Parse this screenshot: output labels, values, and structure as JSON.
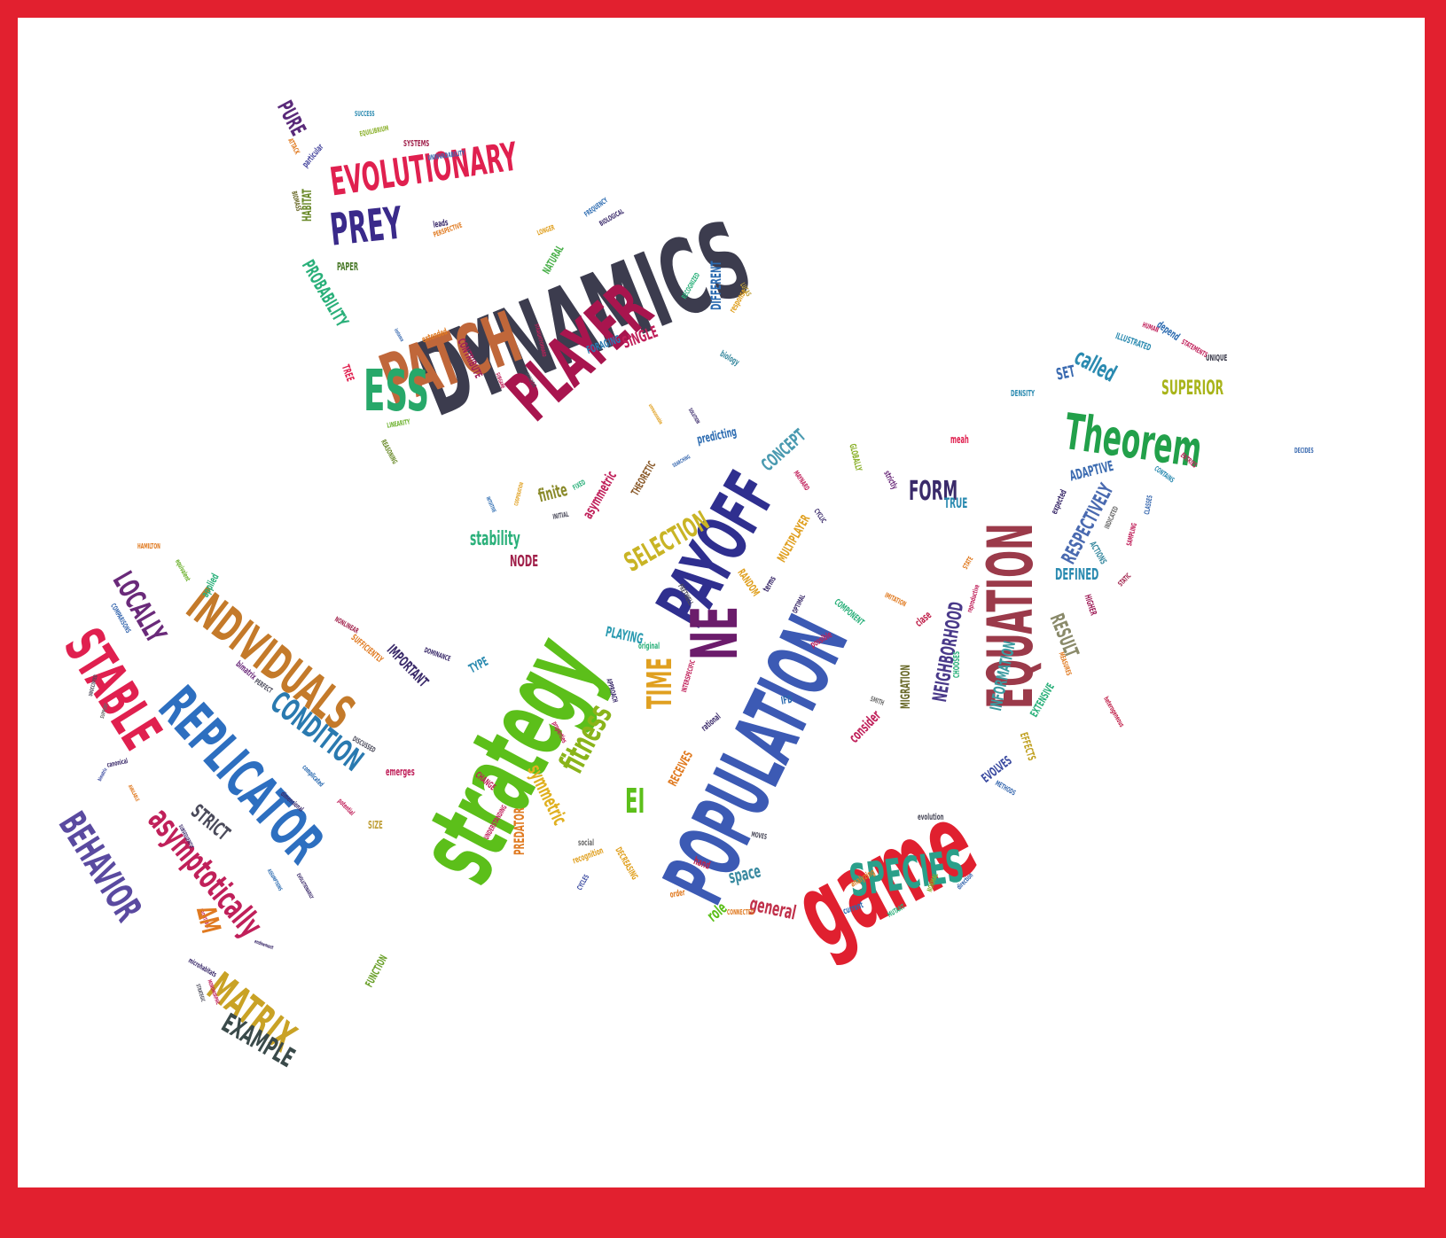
{
  "frame": {
    "border_color": "#e2202f",
    "paper_color": "#ffffff"
  },
  "words": [
    {
      "t": "DYNAMICS",
      "c": "#3c3c4e"
    },
    {
      "t": "strategy",
      "c": "#5cbf1a"
    },
    {
      "t": "game",
      "c": "#e0202f"
    },
    {
      "t": "POPULATION",
      "c": "#3c5ab4"
    },
    {
      "t": "PAYOFF",
      "c": "#2f2f8f"
    },
    {
      "t": "EQUATION",
      "c": "#9b3a4a"
    },
    {
      "t": "PATCH",
      "c": "#c0673a"
    },
    {
      "t": "PLAYER",
      "c": "#a8154e"
    },
    {
      "t": "NE",
      "c": "#6b1c6b"
    },
    {
      "t": "REPLICATOR",
      "c": "#2d6fc0"
    },
    {
      "t": "STABLE",
      "c": "#e0204f"
    },
    {
      "t": "INDIVIDUALS",
      "c": "#c47a2a"
    },
    {
      "t": "Theorem",
      "c": "#22a04a"
    },
    {
      "t": "EVOLUTIONARY",
      "c": "#e0204f"
    },
    {
      "t": "ESS",
      "c": "#27a86a"
    },
    {
      "t": "PREY",
      "c": "#3a2a8a"
    },
    {
      "t": "SPECIES",
      "c": "#2a9f8a"
    },
    {
      "t": "BEHAVIOR",
      "c": "#5a4aa0"
    },
    {
      "t": "asymptotically",
      "c": "#c0205a"
    },
    {
      "t": "MATRIX",
      "c": "#c9a225"
    },
    {
      "t": "EXAMPLE",
      "c": "#3a4a4a"
    },
    {
      "t": "LOCALLY",
      "c": "#6a2a7a"
    },
    {
      "t": "CONDITION",
      "c": "#2a7ab0"
    },
    {
      "t": "fitness",
      "c": "#8ab41a"
    },
    {
      "t": "TIME",
      "c": "#e0a020"
    },
    {
      "t": "SELECTION",
      "c": "#c9b425"
    },
    {
      "t": "stability",
      "c": "#2ab07a"
    },
    {
      "t": "FORM",
      "c": "#3a2a6a"
    },
    {
      "t": "NEIGHBORHOOD",
      "c": "#4a3a8a"
    },
    {
      "t": "RESPECTIVELY",
      "c": "#4a6ab0"
    },
    {
      "t": "SUPERIOR",
      "c": "#a8b41a"
    },
    {
      "t": "called",
      "c": "#2a8ab0"
    },
    {
      "t": "RESULT",
      "c": "#8a8a6a"
    },
    {
      "t": "INFORMATION",
      "c": "#3a9aa0"
    },
    {
      "t": "EI",
      "c": "#5cbf1a"
    },
    {
      "t": "general",
      "c": "#c0304a"
    },
    {
      "t": "STRICT",
      "c": "#4a4a5a"
    },
    {
      "t": "PROBABILITY",
      "c": "#2ab07a"
    },
    {
      "t": "PURE",
      "c": "#5a2a7a"
    },
    {
      "t": "HABITAT",
      "c": "#6a8a2a"
    },
    {
      "t": "DIFFERENT",
      "c": "#2a6ab0"
    },
    {
      "t": "SINGLE",
      "c": "#c0205a"
    },
    {
      "t": "CONCEPT",
      "c": "#4a9ab0"
    },
    {
      "t": "symmetric",
      "c": "#e0b020"
    },
    {
      "t": "PREDATOR",
      "c": "#e07a20"
    },
    {
      "t": "IMPORTANT",
      "c": "#3a2a6a"
    },
    {
      "t": "MIGRATION",
      "c": "#6a6a2a"
    },
    {
      "t": "ADAPTIVE",
      "c": "#3a6ab0"
    },
    {
      "t": "DEFINED",
      "c": "#2a8ab0"
    },
    {
      "t": "consider",
      "c": "#c0205a"
    },
    {
      "t": "space",
      "c": "#3a8aa0"
    },
    {
      "t": "role",
      "c": "#5cbf1a"
    },
    {
      "t": "PLAYING",
      "c": "#2a9ab0"
    },
    {
      "t": "NODE",
      "c": "#a0204a"
    },
    {
      "t": "finite",
      "c": "#8a8a2a"
    },
    {
      "t": "asymmetric",
      "c": "#c0205a"
    },
    {
      "t": "SET",
      "c": "#3a6ab0"
    },
    {
      "t": "TRUE",
      "c": "#2a8ab0"
    },
    {
      "t": "EVOLVES",
      "c": "#3a4aa0"
    },
    {
      "t": "FUNCTION",
      "c": "#6aa02a"
    },
    {
      "t": "SIZE",
      "c": "#c0a03a"
    },
    {
      "t": "TYPE",
      "c": "#2a8ab0"
    },
    {
      "t": "predicting",
      "c": "#2a6ab0"
    },
    {
      "t": "MULTIPLAYER",
      "c": "#e0a020"
    },
    {
      "t": "RANDOM",
      "c": "#e0a020"
    },
    {
      "t": "EFFECTS",
      "c": "#c0a020"
    },
    {
      "t": "EXTENSIVE",
      "c": "#2ab07a"
    },
    {
      "t": "FORAGING",
      "c": "#2a7ab0"
    },
    {
      "t": "CONTRIBUTE",
      "c": "#a0205a"
    },
    {
      "t": "NATURAL",
      "c": "#4ab04a"
    },
    {
      "t": "TREE",
      "c": "#e0204f"
    },
    {
      "t": "PAPER",
      "c": "#4a7a2a"
    },
    {
      "t": "emerges",
      "c": "#c0205a"
    },
    {
      "t": "CHOOSES",
      "c": "#2ab07a"
    },
    {
      "t": "DECREASING",
      "c": "#e0a020"
    },
    {
      "t": "THEORETIC",
      "c": "#8a5a2a"
    },
    {
      "t": "GLOBALLY",
      "c": "#8ab02a"
    },
    {
      "t": "COMPONENT",
      "c": "#2ab07a"
    },
    {
      "t": "ACTIONS",
      "c": "#3a8aa0"
    },
    {
      "t": "HIGHER",
      "c": "#a0205a"
    },
    {
      "t": "DENSITY",
      "c": "#2a8ab0"
    },
    {
      "t": "UNIQUE",
      "c": "#3a3a4a"
    },
    {
      "t": "depend",
      "c": "#2a6ab0"
    },
    {
      "t": "ILLUSTRATED",
      "c": "#2a8ab0"
    },
    {
      "t": "REASONING",
      "c": "#6a8a2a"
    },
    {
      "t": "LONGER",
      "c": "#e0a020"
    },
    {
      "t": "BIOLOGICAL",
      "c": "#3a2a6a"
    },
    {
      "t": "PERSPECTIVE",
      "c": "#e07a20"
    },
    {
      "t": "leads",
      "c": "#3a2a6a"
    },
    {
      "t": "SYSTEMS",
      "c": "#a0204a"
    },
    {
      "t": "SUCCESS",
      "c": "#2a8ab0"
    },
    {
      "t": "EQUILIBRIUM",
      "c": "#8ab02a"
    },
    {
      "t": "UNINVADABILITY",
      "c": "#3a6ab0"
    },
    {
      "t": "ATTACK",
      "c": "#e07a20"
    },
    {
      "t": "particular",
      "c": "#4a4aa0"
    },
    {
      "t": "BIOMASS",
      "c": "#6a6a2a"
    },
    {
      "t": "FREQUENCY",
      "c": "#2a6ab0"
    },
    {
      "t": "extended",
      "c": "#e07a20"
    },
    {
      "t": "biology",
      "c": "#3a8aa0"
    },
    {
      "t": "response",
      "c": "#e0a020"
    },
    {
      "t": "RECOGNIZED",
      "c": "#2ab07a"
    },
    {
      "t": "LUCAS",
      "c": "#c0a03a"
    },
    {
      "t": "HAMILTON",
      "c": "#e07a20"
    },
    {
      "t": "equivalent",
      "c": "#6ab02a"
    },
    {
      "t": "applied",
      "c": "#2ab07a"
    },
    {
      "t": "COMPARISONS",
      "c": "#3a6ab0"
    },
    {
      "t": "bimatrix",
      "c": "#6a2a7a"
    },
    {
      "t": "PERFECT",
      "c": "#4a4a5a"
    },
    {
      "t": "NONLINEAR",
      "c": "#a0204a"
    },
    {
      "t": "SUFFICIENTLY",
      "c": "#e07a20"
    },
    {
      "t": "DOMINANCE",
      "c": "#3a2a6a"
    },
    {
      "t": "DISCUSSED",
      "c": "#4a4a5a"
    },
    {
      "t": "complicated",
      "c": "#2a6ab0"
    },
    {
      "t": "potential",
      "c": "#c0205a"
    },
    {
      "t": "dimensional",
      "c": "#3a2a6a"
    },
    {
      "t": "CHANGE",
      "c": "#c0205a"
    },
    {
      "t": "UNDERSTANDING",
      "c": "#c0205a"
    },
    {
      "t": "social",
      "c": "#6a6a6a"
    },
    {
      "t": "recognition",
      "c": "#e0a020"
    },
    {
      "t": "CYCLES",
      "c": "#3a4aa0"
    },
    {
      "t": "hand",
      "c": "#c0204a"
    },
    {
      "t": "order",
      "c": "#e07a20"
    },
    {
      "t": "CONNECTED",
      "c": "#e07a20"
    },
    {
      "t": "MOVES",
      "c": "#4a4a5a"
    },
    {
      "t": "current",
      "c": "#2a6ab0"
    },
    {
      "t": "analyzing",
      "c": "#e07a20"
    },
    {
      "t": "MUTANT",
      "c": "#2ab07a"
    },
    {
      "t": "NORMAL",
      "c": "#8ab02a"
    },
    {
      "t": "direction",
      "c": "#3a6ab0"
    },
    {
      "t": "evolution",
      "c": "#4a4a5a"
    },
    {
      "t": "METHODS",
      "c": "#3a6ab0"
    },
    {
      "t": "heterogeneous",
      "c": "#c0204a"
    },
    {
      "t": "MEASURES",
      "c": "#e07a20"
    },
    {
      "t": "STATIC",
      "c": "#a0204a"
    },
    {
      "t": "SAMPLING",
      "c": "#c0205a"
    },
    {
      "t": "CLASSES",
      "c": "#3a6ab0"
    },
    {
      "t": "INDICATED",
      "c": "#6a6a6a"
    },
    {
      "t": "CONTAINS",
      "c": "#2a8ab0"
    },
    {
      "t": "ENTRIES",
      "c": "#c0205a"
    },
    {
      "t": "DECIDES",
      "c": "#3a6ab0"
    },
    {
      "t": "expected",
      "c": "#3a2a6a"
    },
    {
      "t": "strictly",
      "c": "#6a2a7a"
    },
    {
      "t": "meah",
      "c": "#e0204f"
    },
    {
      "t": "HUMAN",
      "c": "#c0205a"
    },
    {
      "t": "STATEMENTS",
      "c": "#c0205a"
    },
    {
      "t": "MAYNARD",
      "c": "#c0205a"
    },
    {
      "t": "SMITH",
      "c": "#6a6a6a"
    },
    {
      "t": "IMITATION",
      "c": "#e07a20"
    },
    {
      "t": "reproductive",
      "c": "#c0205a"
    },
    {
      "t": "STATE",
      "c": "#e07a20"
    },
    {
      "t": "clase",
      "c": "#c0204a"
    },
    {
      "t": "possible",
      "c": "#c0205a"
    },
    {
      "t": "OPTIMAL",
      "c": "#3a2a6a"
    },
    {
      "t": "terms",
      "c": "#3a2a6a"
    },
    {
      "t": "CYCLIC",
      "c": "#3a2a6a"
    },
    {
      "t": "FRETWELL",
      "c": "#4a4a5a"
    },
    {
      "t": "original",
      "c": "#2ab07a"
    },
    {
      "t": "rational",
      "c": "#3a2a6a"
    },
    {
      "t": "INTERSPECIFIC",
      "c": "#c0205a"
    },
    {
      "t": "RECEIVES",
      "c": "#e07a20"
    },
    {
      "t": "IFD",
      "c": "#2a6ab0"
    },
    {
      "t": "APPROACH",
      "c": "#3a2a6a"
    },
    {
      "t": "properties",
      "c": "#c0205a"
    },
    {
      "t": "FIXED",
      "c": "#2ab07a"
    },
    {
      "t": "INITIAL",
      "c": "#4a4a5a"
    },
    {
      "t": "COOPERATION",
      "c": "#e0a020"
    },
    {
      "t": "INTUITIVE",
      "c": "#2a6ab0"
    },
    {
      "t": "SEARCHING",
      "c": "#3a6ab0"
    },
    {
      "t": "SOLUTION",
      "c": "#3a2a6a"
    },
    {
      "t": "unreasonable",
      "c": "#e0a020"
    },
    {
      "t": "ANALYSIS",
      "c": "#4a4a5a"
    },
    {
      "t": "SUBGAME",
      "c": "#c0205a"
    },
    {
      "t": "STRAIGHTFORWARD",
      "c": "#c0205a"
    },
    {
      "t": "LINEARITY",
      "c": "#6ab02a"
    },
    {
      "t": "instance",
      "c": "#3a6ab0"
    },
    {
      "t": "UNOCCUPIED",
      "c": "#4a4a5a"
    },
    {
      "t": "SUPPORT",
      "c": "#6a6a6a"
    },
    {
      "t": "canonical",
      "c": "#3a2a6a"
    },
    {
      "t": "bimatrix",
      "c": "#3a4aa0"
    },
    {
      "t": "AVAILABLE",
      "c": "#e07a20"
    },
    {
      "t": "SUBSEQUENTLY",
      "c": "#3a2a6a"
    },
    {
      "t": "ASSUMPTIONS",
      "c": "#2a6ab0"
    },
    {
      "t": "EVOLUTIONARILY",
      "c": "#3a2a6a"
    },
    {
      "t": "PROFITABLE",
      "c": "#c0205a"
    },
    {
      "t": "endowment",
      "c": "#3a2a6a"
    },
    {
      "t": "microhabitats",
      "c": "#3a2a6a"
    },
    {
      "t": "STRATEGIC",
      "c": "#4a4a5a"
    },
    {
      "t": "MONOMORPHIC",
      "c": "#c0205a"
    },
    {
      "t": "ΔM",
      "c": "#e07a20"
    }
  ]
}
